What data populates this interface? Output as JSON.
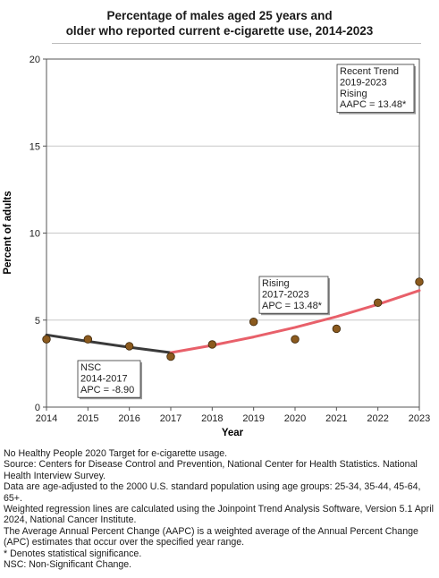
{
  "chart_data": {
    "type": "line",
    "title": "Percentage of males aged 25 years and older who reported current e-cigarette use, 2014-2023",
    "title_lines": [
      "Percentage of males aged 25 years and",
      "older who reported current e-cigarette use, 2014-2023"
    ],
    "xlabel": "Year",
    "ylabel": "Percent of adults",
    "x": [
      2014,
      2015,
      2016,
      2017,
      2018,
      2019,
      2020,
      2021,
      2022,
      2023
    ],
    "xlim": [
      2014,
      2023
    ],
    "ylim": [
      0,
      20
    ],
    "yticks": [
      0,
      5,
      10,
      15,
      20
    ],
    "grid": "horizontal",
    "observed": {
      "values": [
        3.9,
        3.9,
        3.5,
        2.9,
        3.6,
        4.9,
        3.9,
        4.5,
        6.0,
        7.2
      ],
      "color": "#8B5A1E"
    },
    "trend_segments": [
      {
        "years": [
          2014,
          2015,
          2016,
          2017
        ],
        "values": [
          4.15,
          3.78,
          3.44,
          3.13
        ],
        "color": "#3a3a3a",
        "label_lines": [
          "NSC",
          "2014-2017",
          "APC = -8.90"
        ]
      },
      {
        "years": [
          2017,
          2018,
          2019,
          2020,
          2021,
          2022,
          2023
        ],
        "values": [
          3.13,
          3.55,
          4.03,
          4.58,
          5.2,
          5.9,
          6.7
        ],
        "color": "#e8606a",
        "label_lines": [
          "Rising",
          "2017-2023",
          "APC = 13.48*"
        ]
      }
    ],
    "recent_trend": {
      "label_lines": [
        "Recent Trend",
        "2019-2023",
        "Rising",
        "AAPC = 13.48*"
      ]
    }
  },
  "footnotes": [
    "No Healthy People 2020 Target for e-cigarette usage.",
    "Source: Centers for Disease Control and Prevention, National Center for Health Statistics. National Health Interview Survey.",
    "Data are age-adjusted to the 2000 U.S. standard population using age groups: 25-34, 35-44, 45-64, 65+.",
    "Weighted regression lines are calculated using the Joinpoint Trend Analysis Software, Version 5.1 April 2024, National Cancer Institute.",
    "The Average Annual Percent Change (AAPC) is a weighted average of the Annual Percent Change (APC) estimates that occur over the specified year range.",
    "* Denotes statistical significance.",
    "NSC: Non-Significant Change."
  ]
}
